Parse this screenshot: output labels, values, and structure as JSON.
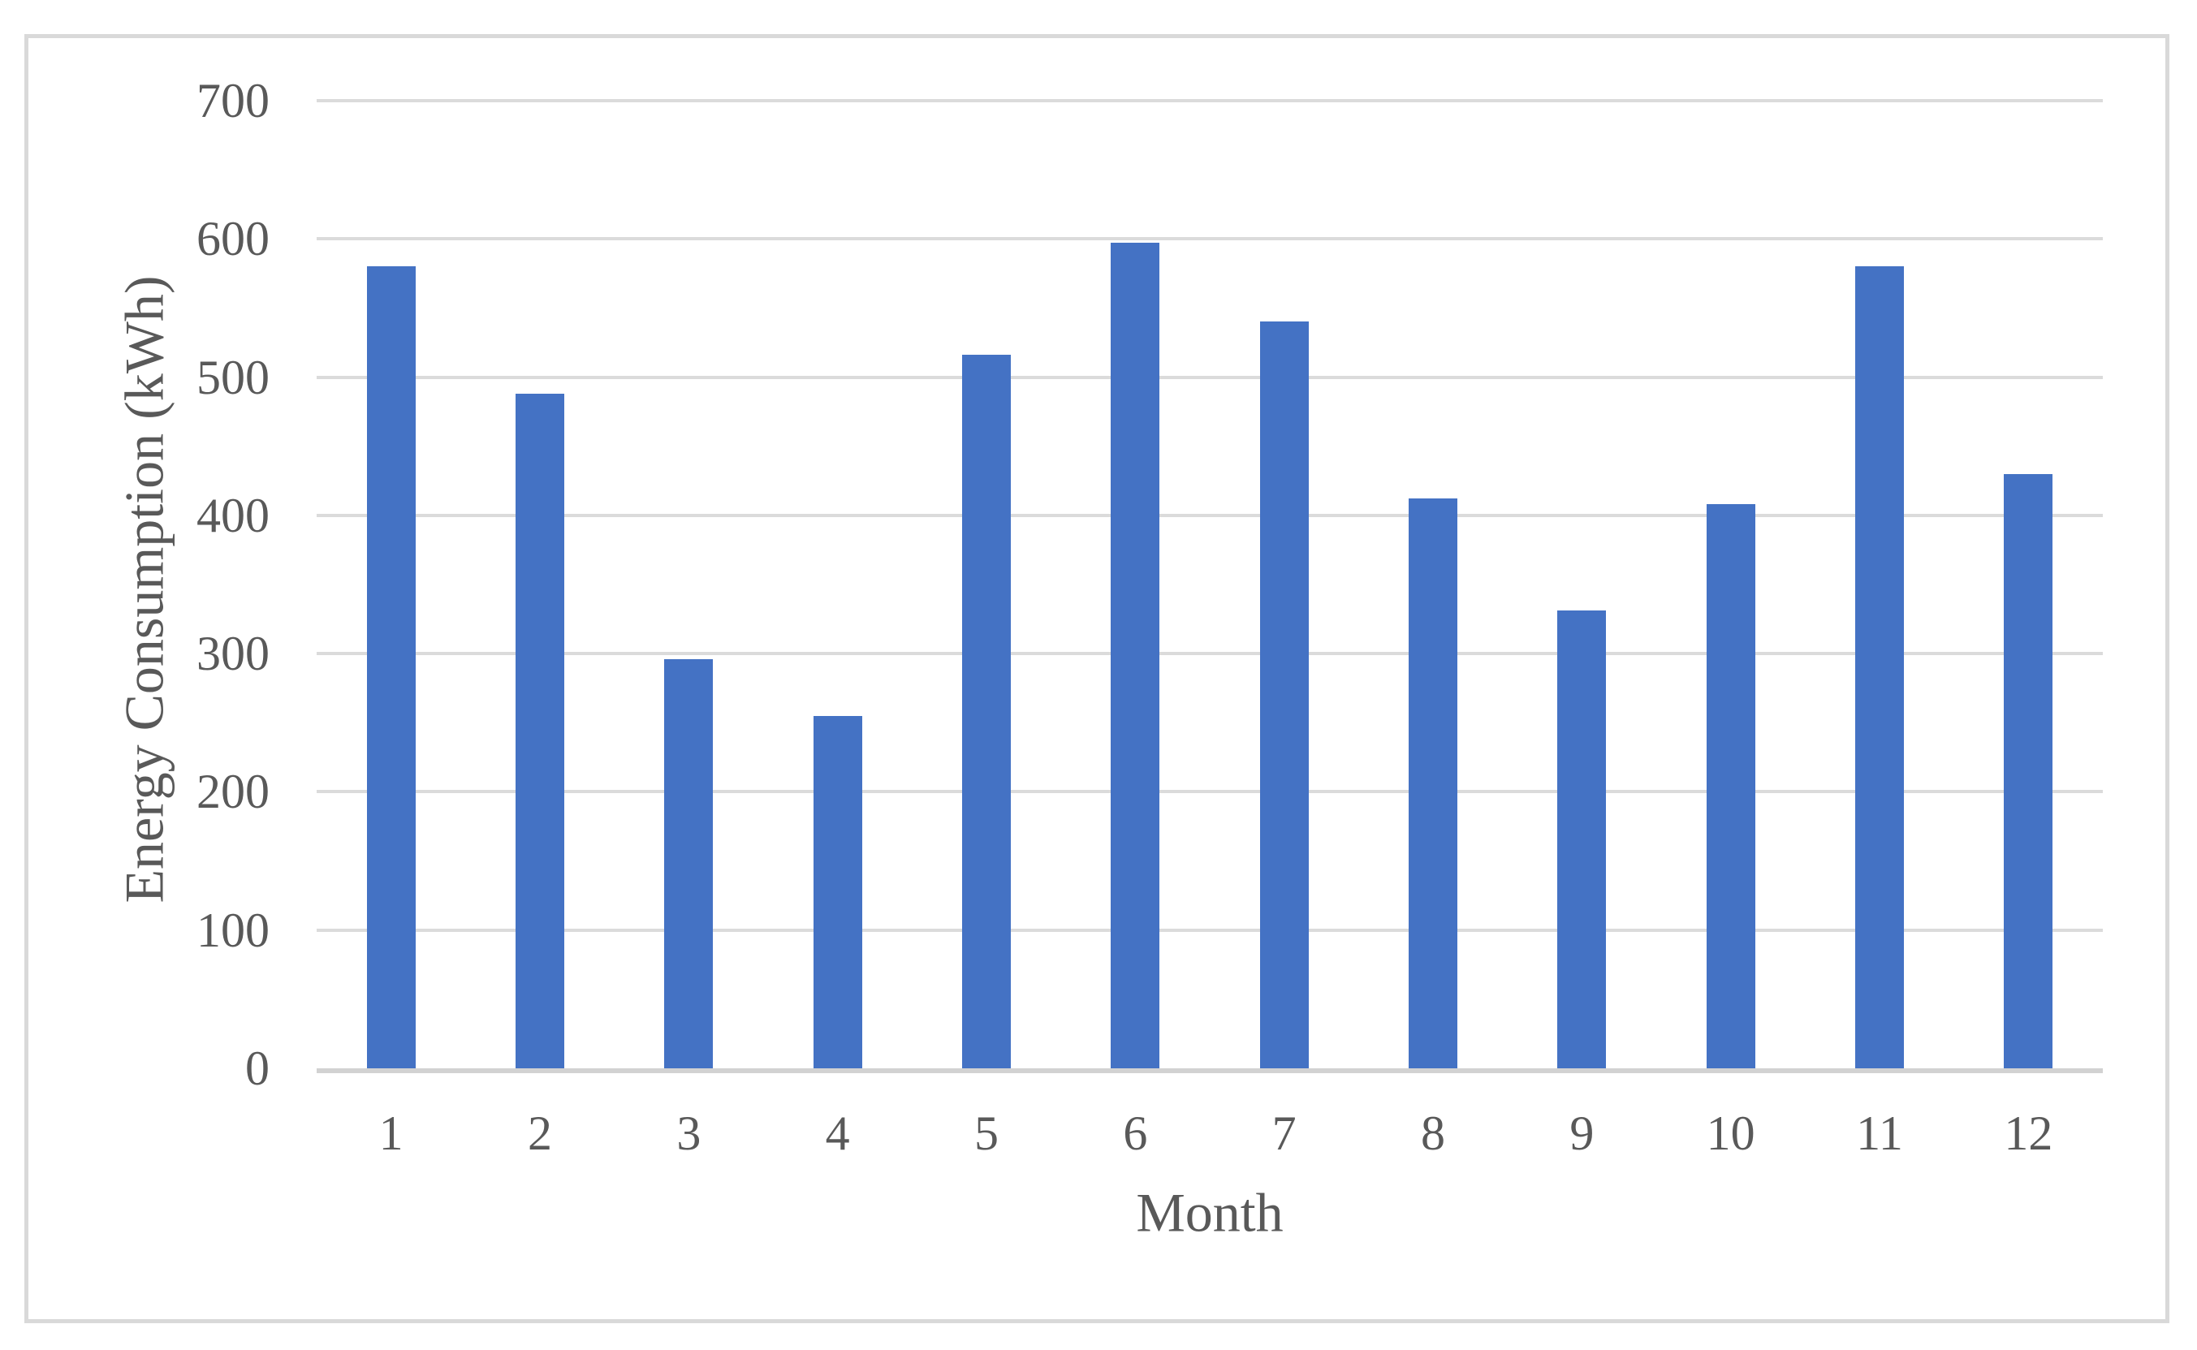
{
  "chart_data": {
    "type": "bar",
    "title": "",
    "xlabel": "Month",
    "ylabel": "Energy Consumption (kWh)",
    "categories": [
      "1",
      "2",
      "3",
      "4",
      "5",
      "6",
      "7",
      "8",
      "9",
      "10",
      "11",
      "12"
    ],
    "values": [
      580,
      488,
      296,
      255,
      516,
      597,
      540,
      412,
      331,
      408,
      580,
      430
    ],
    "series_name": "Energy Consumption (kWh)",
    "yticks": [
      0,
      100,
      200,
      300,
      400,
      500,
      600,
      700
    ],
    "ylim": [
      0,
      700
    ],
    "grid": "horizontal",
    "legend": "none",
    "colors": {
      "bar": "#4472c4",
      "gridline": "#dbdbdb",
      "axis_line": "#d2d2d2",
      "frame_border": "#d9d9d9",
      "text": "#595959",
      "background": "#ffffff"
    }
  }
}
